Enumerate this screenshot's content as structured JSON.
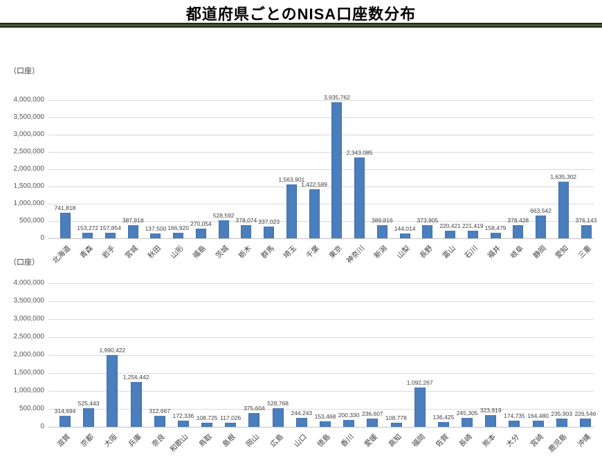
{
  "page": {
    "title": "都道府県ごとのNISA口座数分布"
  },
  "colors": {
    "bar": "#4a7ebc",
    "bar_border": "#3d6ea9",
    "gridline": "#d9d9d9",
    "axis_line": "#c3c3c3",
    "label_text": "#3f3f3f",
    "divider_dark": "#1e2811",
    "divider_light": "#4d5d35"
  },
  "chart_data": [
    {
      "type": "bar",
      "title": "",
      "xlabel": "",
      "ylabel": "（口座）",
      "ylim": [
        0,
        4000000
      ],
      "ytick_step": 500000,
      "grid": true,
      "legend": null,
      "data_labels": true,
      "categories": [
        "北海道",
        "青森",
        "岩手",
        "宮城",
        "秋田",
        "山形",
        "福島",
        "茨城",
        "栃木",
        "群馬",
        "埼玉",
        "千葉",
        "東京",
        "神奈川",
        "新潟",
        "山梨",
        "長野",
        "富山",
        "石川",
        "福井",
        "岐阜",
        "静岡",
        "愛知",
        "三重"
      ],
      "values": [
        741818,
        153272,
        157854,
        387918,
        137500,
        166920,
        270054,
        528592,
        378074,
        337023,
        1563901,
        1422589,
        3935762,
        2343085,
        389816,
        144014,
        373905,
        220421,
        221419,
        158479,
        378428,
        663542,
        1635302,
        376143
      ]
    },
    {
      "type": "bar",
      "title": "",
      "xlabel": "",
      "ylabel": "（口座）",
      "ylim": [
        0,
        4000000
      ],
      "ytick_step": 500000,
      "grid": true,
      "legend": null,
      "data_labels": true,
      "categories": [
        "滋賀",
        "京都",
        "大阪",
        "兵庫",
        "奈良",
        "和歌山",
        "鳥取",
        "島根",
        "岡山",
        "広島",
        "山口",
        "徳島",
        "香川",
        "愛媛",
        "高知",
        "福岡",
        "佐賀",
        "長崎",
        "熊本",
        "大分",
        "宮崎",
        "鹿児島",
        "沖縄"
      ],
      "values": [
        314694,
        525443,
        1990422,
        1256442,
        312667,
        172336,
        108725,
        117026,
        375604,
        528768,
        244243,
        153468,
        200330,
        236607,
        108778,
        1092267,
        136425,
        245305,
        323919,
        174735,
        164480,
        235903,
        226546
      ]
    }
  ]
}
